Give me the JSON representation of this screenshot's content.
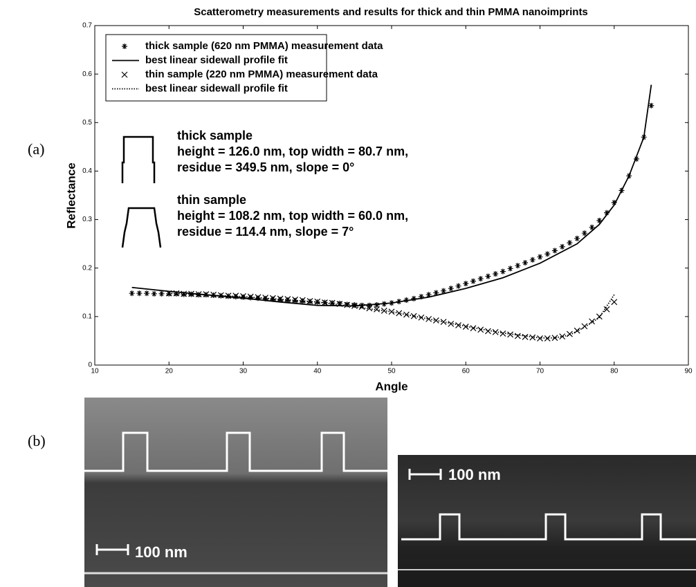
{
  "labels": {
    "a": "(a)",
    "b": "(b)"
  },
  "chart_data": {
    "type": "line",
    "title": "Scatterometry measurements and results for thick and thin PMMA nanoimprints",
    "x_label": "Angle",
    "y_label": "Reflectance",
    "xlim": [
      10,
      90
    ],
    "ylim": [
      0,
      0.7
    ],
    "xticks": [
      10,
      20,
      30,
      40,
      50,
      60,
      70,
      80,
      90
    ],
    "yticks": [
      0,
      0.1,
      0.2,
      0.3,
      0.4,
      0.5,
      0.6,
      0.7
    ],
    "grid": false,
    "legend": "upper left",
    "series": [
      {
        "name": "thick sample (620 nm PMMA) measurement data",
        "color": "#000",
        "style": "markers",
        "marker": "asterisk",
        "x": [
          15,
          16,
          17,
          18,
          19,
          20,
          21,
          22,
          23,
          24,
          25,
          26,
          27,
          28,
          29,
          30,
          31,
          32,
          33,
          34,
          35,
          36,
          37,
          38,
          39,
          40,
          41,
          42,
          43,
          44,
          45,
          46,
          47,
          48,
          49,
          50,
          51,
          52,
          53,
          54,
          55,
          56,
          57,
          58,
          59,
          60,
          61,
          62,
          63,
          64,
          65,
          66,
          67,
          68,
          69,
          70,
          71,
          72,
          73,
          74,
          75,
          76,
          77,
          78,
          79,
          80,
          81,
          82,
          83,
          84,
          85
        ],
        "values": [
          0.148,
          0.148,
          0.148,
          0.147,
          0.147,
          0.147,
          0.147,
          0.146,
          0.146,
          0.145,
          0.145,
          0.144,
          0.143,
          0.142,
          0.141,
          0.14,
          0.139,
          0.138,
          0.137,
          0.136,
          0.135,
          0.134,
          0.133,
          0.132,
          0.131,
          0.13,
          0.129,
          0.128,
          0.127,
          0.125,
          0.124,
          0.123,
          0.123,
          0.124,
          0.126,
          0.128,
          0.131,
          0.134,
          0.137,
          0.141,
          0.145,
          0.149,
          0.153,
          0.158,
          0.163,
          0.168,
          0.173,
          0.178,
          0.183,
          0.188,
          0.193,
          0.199,
          0.205,
          0.211,
          0.217,
          0.223,
          0.229,
          0.236,
          0.244,
          0.252,
          0.261,
          0.272,
          0.284,
          0.298,
          0.314,
          0.335,
          0.36,
          0.39,
          0.425,
          0.47,
          0.535
        ]
      },
      {
        "name": "best linear sidewall profile fit",
        "color": "#000",
        "style": "line",
        "dash": "solid",
        "x": [
          15,
          20,
          25,
          30,
          35,
          40,
          45,
          50,
          55,
          60,
          65,
          70,
          75,
          78,
          80,
          82,
          84,
          85
        ],
        "values": [
          0.16,
          0.152,
          0.145,
          0.138,
          0.13,
          0.123,
          0.122,
          0.128,
          0.14,
          0.158,
          0.18,
          0.21,
          0.25,
          0.29,
          0.33,
          0.39,
          0.47,
          0.578
        ]
      },
      {
        "name": "thin sample (220 nm PMMA) measurement data",
        "color": "#000",
        "style": "markers",
        "marker": "cross",
        "x": [
          20,
          21,
          22,
          23,
          24,
          25,
          26,
          27,
          28,
          29,
          30,
          31,
          32,
          33,
          34,
          35,
          36,
          37,
          38,
          39,
          40,
          41,
          42,
          43,
          44,
          45,
          46,
          47,
          48,
          49,
          50,
          51,
          52,
          53,
          54,
          55,
          56,
          57,
          58,
          59,
          60,
          61,
          62,
          63,
          64,
          65,
          66,
          67,
          68,
          69,
          70,
          71,
          72,
          73,
          74,
          75,
          76,
          77,
          78,
          79,
          80
        ],
        "values": [
          0.148,
          0.148,
          0.147,
          0.147,
          0.146,
          0.146,
          0.145,
          0.144,
          0.143,
          0.143,
          0.142,
          0.141,
          0.14,
          0.139,
          0.138,
          0.137,
          0.136,
          0.135,
          0.134,
          0.132,
          0.131,
          0.129,
          0.128,
          0.126,
          0.124,
          0.122,
          0.12,
          0.117,
          0.115,
          0.112,
          0.11,
          0.107,
          0.104,
          0.101,
          0.098,
          0.095,
          0.092,
          0.089,
          0.085,
          0.082,
          0.079,
          0.076,
          0.073,
          0.07,
          0.068,
          0.065,
          0.063,
          0.06,
          0.058,
          0.057,
          0.055,
          0.055,
          0.056,
          0.059,
          0.064,
          0.071,
          0.08,
          0.09,
          0.1,
          0.115,
          0.13
        ]
      },
      {
        "name": "best linear sidewall profile fit",
        "color": "#000",
        "style": "line",
        "dash": "dotted",
        "x": [
          20,
          30,
          40,
          50,
          60,
          65,
          70,
          72,
          74,
          76,
          78,
          80
        ],
        "values": [
          0.148,
          0.141,
          0.13,
          0.11,
          0.08,
          0.066,
          0.056,
          0.056,
          0.062,
          0.078,
          0.098,
          0.145
        ]
      }
    ],
    "annotations": [
      {
        "title": "thick sample",
        "lines": [
          "height = 126.0 nm, top width = 80.7 nm,",
          "residue = 349.5 nm, slope = 0°"
        ]
      },
      {
        "title": "thin sample",
        "lines": [
          "height = 108.2 nm, top width = 60.0 nm,",
          "residue = 114.4 nm, slope = 7°"
        ]
      }
    ]
  },
  "images": [
    {
      "scale_label": "100 nm"
    },
    {
      "scale_label": "100 nm"
    }
  ]
}
